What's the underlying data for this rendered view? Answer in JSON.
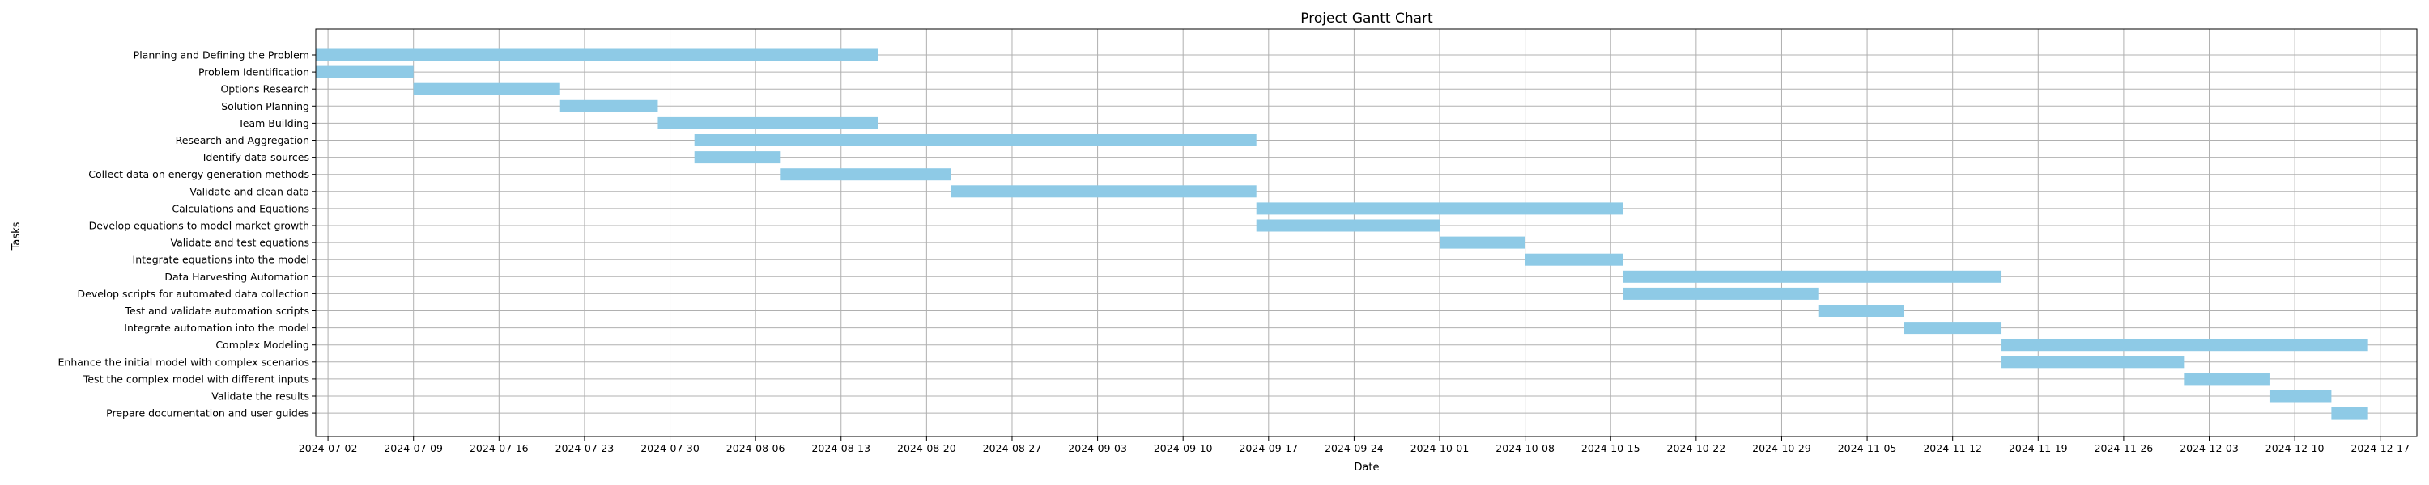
{
  "chart_data": {
    "type": "bar",
    "orientation": "horizontal",
    "subtype": "gantt",
    "title": "Project Gantt Chart",
    "xlabel": "Date",
    "ylabel": "Tasks",
    "xlim": [
      "2024-07-01",
      "2024-12-20"
    ],
    "x_ticks": [
      "2024-07-02",
      "2024-07-09",
      "2024-07-16",
      "2024-07-23",
      "2024-07-30",
      "2024-08-06",
      "2024-08-13",
      "2024-08-20",
      "2024-08-27",
      "2024-09-03",
      "2024-09-10",
      "2024-09-17",
      "2024-09-24",
      "2024-10-01",
      "2024-10-08",
      "2024-10-15",
      "2024-10-22",
      "2024-10-29",
      "2024-11-05",
      "2024-11-12",
      "2024-11-19",
      "2024-11-26",
      "2024-12-03",
      "2024-12-10",
      "2024-12-17"
    ],
    "grid": true,
    "bar_color": "#8ecae6",
    "tasks": [
      {
        "name": "Planning and Defining the Problem",
        "start": "2024-07-01",
        "end": "2024-08-15"
      },
      {
        "name": "Problem Identification",
        "start": "2024-07-01",
        "end": "2024-07-08"
      },
      {
        "name": "Options Research",
        "start": "2024-07-09",
        "end": "2024-07-20"
      },
      {
        "name": "Solution Planning",
        "start": "2024-07-21",
        "end": "2024-07-28"
      },
      {
        "name": "Team Building",
        "start": "2024-07-29",
        "end": "2024-08-15"
      },
      {
        "name": "Research and Aggregation",
        "start": "2024-08-01",
        "end": "2024-09-15"
      },
      {
        "name": "Identify data sources",
        "start": "2024-08-01",
        "end": "2024-08-07"
      },
      {
        "name": "Collect data on energy generation methods",
        "start": "2024-08-08",
        "end": "2024-08-21"
      },
      {
        "name": "Validate and clean data",
        "start": "2024-08-22",
        "end": "2024-09-15"
      },
      {
        "name": "Calculations and Equations",
        "start": "2024-09-16",
        "end": "2024-10-15"
      },
      {
        "name": "Develop equations to model market growth",
        "start": "2024-09-16",
        "end": "2024-09-30"
      },
      {
        "name": "Validate and test equations",
        "start": "2024-10-01",
        "end": "2024-10-07"
      },
      {
        "name": "Integrate equations into the model",
        "start": "2024-10-08",
        "end": "2024-10-15"
      },
      {
        "name": "Data Harvesting Automation",
        "start": "2024-10-16",
        "end": "2024-11-15"
      },
      {
        "name": "Develop scripts for automated data collection",
        "start": "2024-10-16",
        "end": "2024-10-31"
      },
      {
        "name": "Test and validate automation scripts",
        "start": "2024-11-01",
        "end": "2024-11-07"
      },
      {
        "name": "Integrate automation into the model",
        "start": "2024-11-08",
        "end": "2024-11-15"
      },
      {
        "name": "Complex Modeling",
        "start": "2024-11-16",
        "end": "2024-12-15"
      },
      {
        "name": "Enhance the initial model with complex scenarios",
        "start": "2024-11-16",
        "end": "2024-11-30"
      },
      {
        "name": "Test the complex model with different inputs",
        "start": "2024-12-01",
        "end": "2024-12-07"
      },
      {
        "name": "Validate the results",
        "start": "2024-12-08",
        "end": "2024-12-12"
      },
      {
        "name": "Prepare documentation and user guides",
        "start": "2024-12-13",
        "end": "2024-12-15"
      }
    ]
  }
}
